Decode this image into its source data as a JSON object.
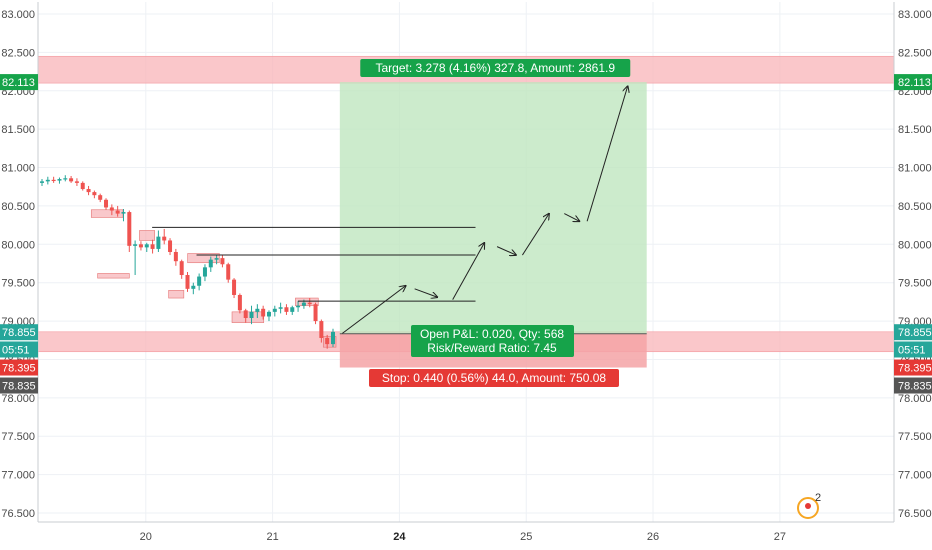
{
  "chart_data": {
    "type": "candlestick",
    "y_range": [
      76.4,
      83.1
    ],
    "y_ticks": [
      "83.000",
      "82.500",
      "82.000",
      "81.500",
      "81.000",
      "80.500",
      "80.000",
      "79.500",
      "79.000",
      "78.500",
      "78.000",
      "77.500",
      "77.000",
      "76.500"
    ],
    "y_tick_values": [
      83.0,
      82.5,
      82.0,
      81.5,
      81.0,
      80.5,
      80.0,
      79.5,
      79.0,
      78.5,
      78.0,
      77.5,
      77.0,
      76.5
    ],
    "x_ticks": [
      {
        "label": "20",
        "pos": 20.0,
        "bold": false
      },
      {
        "label": "21",
        "pos": 21.0,
        "bold": false
      },
      {
        "label": "24",
        "pos": 22.0,
        "bold": true
      },
      {
        "label": "25",
        "pos": 23.0,
        "bold": false
      },
      {
        "label": "26",
        "pos": 24.0,
        "bold": false
      },
      {
        "label": "27",
        "pos": 25.0,
        "bold": false
      }
    ],
    "x_range": [
      19.15,
      25.9
    ],
    "up_color": "#26a69a",
    "down_color": "#ef5350",
    "candles_ohlc": [
      [
        80.8,
        80.85,
        80.76,
        80.82
      ],
      [
        80.82,
        80.88,
        80.78,
        80.84
      ],
      [
        80.84,
        80.88,
        80.8,
        80.83
      ],
      [
        80.83,
        80.87,
        80.79,
        80.85
      ],
      [
        80.85,
        80.9,
        80.82,
        80.86
      ],
      [
        80.86,
        80.89,
        80.8,
        80.82
      ],
      [
        80.82,
        80.86,
        80.76,
        80.8
      ],
      [
        80.8,
        80.82,
        80.7,
        80.72
      ],
      [
        80.72,
        80.76,
        80.64,
        80.68
      ],
      [
        80.68,
        80.7,
        80.6,
        80.64
      ],
      [
        80.64,
        80.66,
        80.55,
        80.58
      ],
      [
        80.58,
        80.6,
        80.45,
        80.48
      ],
      [
        80.48,
        80.52,
        80.38,
        80.44
      ],
      [
        80.44,
        80.5,
        80.36,
        80.4
      ],
      [
        80.4,
        80.46,
        80.3,
        80.42
      ],
      [
        80.42,
        80.44,
        79.9,
        79.98
      ],
      [
        79.98,
        80.05,
        79.6,
        80.0
      ],
      [
        80.0,
        80.04,
        79.92,
        79.96
      ],
      [
        79.96,
        80.02,
        79.9,
        80.0
      ],
      [
        80.0,
        80.06,
        79.88,
        79.94
      ],
      [
        79.94,
        80.18,
        79.9,
        80.1
      ],
      [
        80.1,
        80.2,
        80.0,
        80.05
      ],
      [
        80.05,
        80.08,
        79.86,
        79.9
      ],
      [
        79.9,
        79.94,
        79.72,
        79.78
      ],
      [
        79.78,
        79.8,
        79.55,
        79.6
      ],
      [
        79.6,
        79.64,
        79.38,
        79.42
      ],
      [
        79.42,
        79.5,
        79.35,
        79.46
      ],
      [
        79.46,
        79.62,
        79.4,
        79.58
      ],
      [
        79.58,
        79.74,
        79.52,
        79.7
      ],
      [
        79.7,
        79.84,
        79.64,
        79.8
      ],
      [
        79.8,
        79.86,
        79.74,
        79.82
      ],
      [
        79.82,
        79.86,
        79.7,
        79.74
      ],
      [
        79.74,
        79.76,
        79.5,
        79.54
      ],
      [
        79.54,
        79.56,
        79.3,
        79.34
      ],
      [
        79.34,
        79.36,
        79.1,
        79.14
      ],
      [
        79.14,
        79.16,
        78.98,
        79.04
      ],
      [
        79.04,
        79.2,
        78.96,
        79.12
      ],
      [
        79.12,
        79.22,
        79.04,
        79.16
      ],
      [
        79.16,
        79.2,
        79.02,
        79.06
      ],
      [
        79.06,
        79.14,
        79.0,
        79.12
      ],
      [
        79.12,
        79.2,
        79.06,
        79.16
      ],
      [
        79.16,
        79.24,
        79.1,
        79.18
      ],
      [
        79.18,
        79.22,
        79.08,
        79.12
      ],
      [
        79.12,
        79.2,
        79.08,
        79.18
      ],
      [
        79.18,
        79.26,
        79.12,
        79.2
      ],
      [
        79.2,
        79.28,
        79.16,
        79.24
      ],
      [
        79.24,
        79.3,
        79.18,
        79.22
      ],
      [
        79.22,
        79.24,
        78.96,
        79.0
      ],
      [
        79.0,
        79.02,
        78.72,
        78.78
      ],
      [
        78.78,
        78.82,
        78.64,
        78.7
      ],
      [
        78.7,
        78.9,
        78.66,
        78.86
      ]
    ],
    "pivot_boxes": [
      {
        "x": 19.57,
        "y1": 80.45,
        "y2": 80.35,
        "w": 0.25
      },
      {
        "x": 19.95,
        "y1": 80.18,
        "y2": 80.05,
        "w": 0.12
      },
      {
        "x": 19.62,
        "y1": 79.62,
        "y2": 79.56,
        "w": 0.25
      },
      {
        "x": 20.33,
        "y1": 79.88,
        "y2": 79.76,
        "w": 0.25
      },
      {
        "x": 20.18,
        "y1": 79.4,
        "y2": 79.3,
        "w": 0.12
      },
      {
        "x": 20.68,
        "y1": 79.12,
        "y2": 78.98,
        "w": 0.25
      },
      {
        "x": 21.18,
        "y1": 79.3,
        "y2": 79.2,
        "w": 0.18
      },
      {
        "x": 21.4,
        "y1": 78.8,
        "y2": 78.66,
        "w": 0.1
      }
    ],
    "resistance_lines": [
      {
        "price": 80.22,
        "x1": 20.05,
        "x2": 22.6
      },
      {
        "price": 79.86,
        "x1": 20.4,
        "x2": 22.6
      },
      {
        "price": 79.26,
        "x1": 21.2,
        "x2": 22.6
      }
    ],
    "position": {
      "entry": 78.835,
      "target": 82.113,
      "stop": 78.395,
      "x1": 21.53,
      "x2": 23.95,
      "target_label": "Target: 3.278 (4.16%) 327.8, Amount: 2861.9",
      "stop_label": "Stop: 0.440 (0.56%) 44.0, Amount: 750.08",
      "pnl_label": "Open P&L: 0.020, Qty: 568",
      "rr_label": "Risk/Reward Ratio: 7.45"
    },
    "zones": [
      {
        "y1": 82.45,
        "y2": 82.1
      },
      {
        "y1": 78.86,
        "y2": 78.6
      }
    ],
    "projection_arrows": [
      [
        21.55,
        78.84,
        22.05,
        79.46
      ],
      [
        22.12,
        79.42,
        22.3,
        79.31
      ],
      [
        22.42,
        79.28,
        22.67,
        80.02
      ],
      [
        22.77,
        79.97,
        22.92,
        79.86
      ],
      [
        22.97,
        79.86,
        23.18,
        80.4
      ],
      [
        23.3,
        80.4,
        23.42,
        80.3
      ],
      [
        23.48,
        80.3,
        23.8,
        82.06
      ]
    ],
    "price_tags": {
      "right": [
        {
          "text": "82.113",
          "price": 82.113,
          "color": "#16a34a"
        },
        {
          "text": "78.855",
          "price": 78.855,
          "color": "#26a69a"
        },
        {
          "text": "05:51",
          "price": 78.63,
          "color": "#26a69a"
        },
        {
          "text": "78.835",
          "price": 78.395,
          "color": "#555555",
          "offset": 18
        },
        {
          "text": "78.395",
          "price": 78.395,
          "color": "#e53935"
        }
      ],
      "left": [
        {
          "text": "82.113",
          "price": 82.113,
          "color": "#16a34a"
        },
        {
          "text": "78.855",
          "price": 78.855,
          "color": "#26a69a"
        },
        {
          "text": "05:51",
          "price": 78.63,
          "color": "#26a69a"
        },
        {
          "text": "78.835",
          "price": 78.395,
          "color": "#555555",
          "offset": 18
        },
        {
          "text": "78.395",
          "price": 78.395,
          "color": "#e53935"
        }
      ]
    }
  },
  "logo": {
    "badge": "2"
  }
}
